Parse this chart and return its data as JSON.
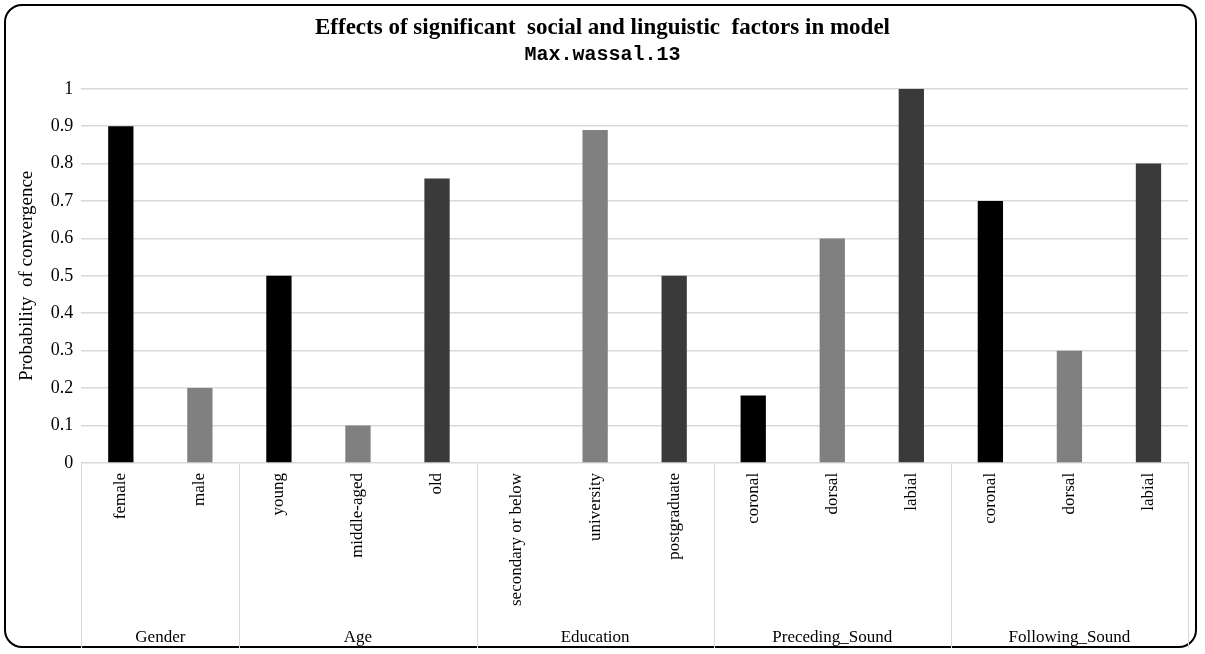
{
  "chart_data": {
    "type": "bar",
    "title": "Effects of significant  social and linguistic  factors in model",
    "subtitle": "Max.wassal.13",
    "ylabel": "Probability  of convergence",
    "categories": [
      "female",
      "male",
      "young",
      "middle-aged",
      "old",
      "secondary or below",
      "university",
      "postgraduate",
      "coronal",
      "dorsal",
      "labial",
      "coronal",
      "dorsal",
      "labial"
    ],
    "values": [
      0.9,
      0.2,
      0.5,
      0.1,
      0.76,
      0,
      0.89,
      0.5,
      0.18,
      0.6,
      1,
      0.7,
      0.3,
      0.8
    ],
    "colors": [
      "#000000",
      "#808080",
      "#000000",
      "#808080",
      "#3a3a3a",
      "#000000",
      "#808080",
      "#3a3a3a",
      "#000000",
      "#808080",
      "#3a3a3a",
      "#000000",
      "#808080",
      "#3a3a3a"
    ],
    "annotations": [
      "Gender",
      "Age",
      "Education",
      "Preceding_Sound",
      "Following_Sound"
    ],
    "ylim": [
      0,
      1
    ],
    "yticks": [
      0,
      0.1,
      0.2,
      0.3,
      0.4,
      0.5,
      0.6,
      0.7,
      0.8,
      0.9,
      1
    ],
    "grid": "y",
    "legend": false
  }
}
